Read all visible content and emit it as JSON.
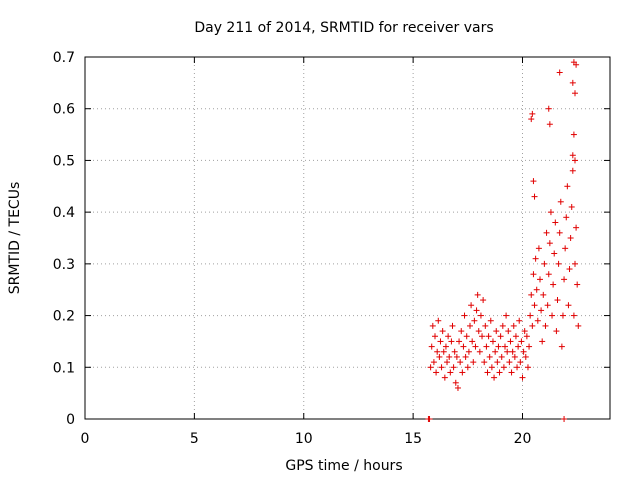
{
  "chart_data": {
    "type": "scatter",
    "title": "Day 211 of 2014, SRMTID for receiver vars",
    "xlabel": "GPS time / hours",
    "ylabel": "SRMTID / TECUs",
    "xlim": [
      0,
      24
    ],
    "ylim": [
      0,
      0.7
    ],
    "x_ticks": [
      0,
      5,
      10,
      15,
      20
    ],
    "x_tick_labels": [
      "0",
      "5",
      "10",
      "15",
      "20"
    ],
    "y_ticks": [
      0,
      0.1,
      0.2,
      0.3,
      0.4,
      0.5,
      0.6,
      0.7
    ],
    "y_tick_labels": [
      "0",
      "0.1",
      "0.2",
      "0.3",
      "0.4",
      "0.5",
      "0.6",
      "0.7"
    ],
    "grid": true,
    "marker": "+",
    "colors": {
      "points": "#e00000",
      "grid": "#a0a0a0",
      "axes": "#000000"
    },
    "series": [
      {
        "name": "receiver vars",
        "points": [
          [
            15.7,
            0.0
          ],
          [
            15.75,
            0.0
          ],
          [
            21.9,
            0.0
          ],
          [
            15.8,
            0.1
          ],
          [
            15.85,
            0.14
          ],
          [
            15.9,
            0.18
          ],
          [
            15.95,
            0.11
          ],
          [
            16.0,
            0.16
          ],
          [
            16.05,
            0.09
          ],
          [
            16.1,
            0.13
          ],
          [
            16.15,
            0.19
          ],
          [
            16.2,
            0.12
          ],
          [
            16.25,
            0.15
          ],
          [
            16.3,
            0.1
          ],
          [
            16.35,
            0.17
          ],
          [
            16.4,
            0.13
          ],
          [
            16.45,
            0.08
          ],
          [
            16.5,
            0.14
          ],
          [
            16.55,
            0.11
          ],
          [
            16.6,
            0.16
          ],
          [
            16.65,
            0.12
          ],
          [
            16.7,
            0.09
          ],
          [
            16.75,
            0.15
          ],
          [
            16.8,
            0.18
          ],
          [
            16.85,
            0.1
          ],
          [
            16.9,
            0.13
          ],
          [
            16.95,
            0.07
          ],
          [
            17.0,
            0.12
          ],
          [
            17.05,
            0.06
          ],
          [
            17.1,
            0.15
          ],
          [
            17.15,
            0.11
          ],
          [
            17.2,
            0.17
          ],
          [
            17.25,
            0.09
          ],
          [
            17.3,
            0.14
          ],
          [
            17.35,
            0.2
          ],
          [
            17.4,
            0.12
          ],
          [
            17.45,
            0.16
          ],
          [
            17.5,
            0.1
          ],
          [
            17.55,
            0.13
          ],
          [
            17.6,
            0.18
          ],
          [
            17.65,
            0.22
          ],
          [
            17.7,
            0.15
          ],
          [
            17.75,
            0.11
          ],
          [
            17.8,
            0.19
          ],
          [
            17.85,
            0.14
          ],
          [
            17.9,
            0.21
          ],
          [
            17.95,
            0.24
          ],
          [
            18.0,
            0.17
          ],
          [
            18.05,
            0.13
          ],
          [
            18.1,
            0.2
          ],
          [
            18.15,
            0.16
          ],
          [
            18.2,
            0.23
          ],
          [
            18.25,
            0.11
          ],
          [
            18.3,
            0.18
          ],
          [
            18.35,
            0.14
          ],
          [
            18.4,
            0.09
          ],
          [
            18.45,
            0.16
          ],
          [
            18.5,
            0.12
          ],
          [
            18.55,
            0.19
          ],
          [
            18.6,
            0.1
          ],
          [
            18.65,
            0.15
          ],
          [
            18.7,
            0.08
          ],
          [
            18.75,
            0.13
          ],
          [
            18.8,
            0.17
          ],
          [
            18.85,
            0.11
          ],
          [
            18.9,
            0.14
          ],
          [
            18.95,
            0.09
          ],
          [
            19.0,
            0.16
          ],
          [
            19.05,
            0.12
          ],
          [
            19.1,
            0.18
          ],
          [
            19.15,
            0.1
          ],
          [
            19.2,
            0.14
          ],
          [
            19.25,
            0.2
          ],
          [
            19.3,
            0.13
          ],
          [
            19.35,
            0.17
          ],
          [
            19.4,
            0.11
          ],
          [
            19.45,
            0.15
          ],
          [
            19.5,
            0.09
          ],
          [
            19.55,
            0.13
          ],
          [
            19.6,
            0.18
          ],
          [
            19.65,
            0.12
          ],
          [
            19.7,
            0.16
          ],
          [
            19.75,
            0.1
          ],
          [
            19.8,
            0.14
          ],
          [
            19.85,
            0.19
          ],
          [
            19.9,
            0.11
          ],
          [
            19.95,
            0.15
          ],
          [
            20.0,
            0.08
          ],
          [
            20.05,
            0.13
          ],
          [
            20.1,
            0.17
          ],
          [
            20.15,
            0.12
          ],
          [
            20.2,
            0.16
          ],
          [
            20.25,
            0.1
          ],
          [
            20.3,
            0.14
          ],
          [
            20.35,
            0.2
          ],
          [
            20.4,
            0.24
          ],
          [
            20.45,
            0.18
          ],
          [
            20.5,
            0.28
          ],
          [
            20.55,
            0.22
          ],
          [
            20.6,
            0.31
          ],
          [
            20.65,
            0.25
          ],
          [
            20.7,
            0.19
          ],
          [
            20.75,
            0.33
          ],
          [
            20.8,
            0.27
          ],
          [
            20.85,
            0.21
          ],
          [
            20.9,
            0.15
          ],
          [
            20.95,
            0.24
          ],
          [
            21.0,
            0.3
          ],
          [
            21.05,
            0.18
          ],
          [
            21.1,
            0.36
          ],
          [
            21.15,
            0.22
          ],
          [
            21.2,
            0.28
          ],
          [
            21.25,
            0.34
          ],
          [
            21.3,
            0.4
          ],
          [
            21.35,
            0.2
          ],
          [
            21.4,
            0.26
          ],
          [
            21.45,
            0.32
          ],
          [
            21.5,
            0.38
          ],
          [
            21.55,
            0.17
          ],
          [
            21.6,
            0.23
          ],
          [
            21.65,
            0.3
          ],
          [
            21.7,
            0.36
          ],
          [
            21.75,
            0.42
          ],
          [
            21.8,
            0.14
          ],
          [
            21.85,
            0.2
          ],
          [
            21.9,
            0.27
          ],
          [
            21.95,
            0.33
          ],
          [
            22.0,
            0.39
          ],
          [
            22.05,
            0.45
          ],
          [
            22.1,
            0.22
          ],
          [
            22.15,
            0.29
          ],
          [
            22.2,
            0.35
          ],
          [
            22.25,
            0.41
          ],
          [
            22.3,
            0.48
          ],
          [
            22.35,
            0.2
          ],
          [
            22.4,
            0.3
          ],
          [
            22.45,
            0.37
          ],
          [
            22.5,
            0.26
          ],
          [
            22.55,
            0.18
          ],
          [
            20.4,
            0.58
          ],
          [
            20.45,
            0.59
          ],
          [
            20.5,
            0.46
          ],
          [
            20.55,
            0.43
          ],
          [
            21.2,
            0.6
          ],
          [
            21.25,
            0.57
          ],
          [
            21.7,
            0.67
          ],
          [
            22.35,
            0.69
          ],
          [
            22.45,
            0.685
          ],
          [
            22.4,
            0.63
          ],
          [
            22.3,
            0.65
          ],
          [
            22.35,
            0.55
          ],
          [
            22.3,
            0.51
          ],
          [
            22.4,
            0.5
          ]
        ]
      }
    ]
  }
}
